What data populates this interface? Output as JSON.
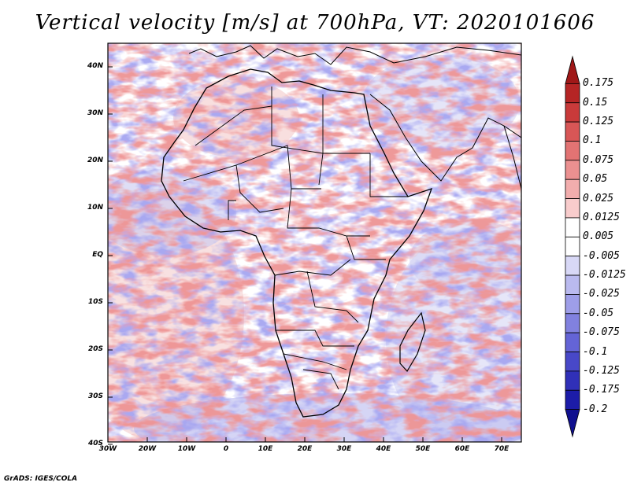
{
  "title": "Vertical velocity [m/s] at 700hPa, VT: 2020101606",
  "credit": "GrADS: IGES/COLA",
  "lat_labels": [
    "40N",
    "30N",
    "20N",
    "10N",
    "EQ",
    "10S",
    "20S",
    "30S",
    "40S"
  ],
  "lon_labels": [
    "30W",
    "20W",
    "10W",
    "0",
    "10E",
    "20E",
    "30E",
    "40E",
    "50E",
    "60E",
    "70E"
  ],
  "colorbar": {
    "labels": [
      "0.175",
      "0.15",
      "0.125",
      "0.1",
      "0.075",
      "0.05",
      "0.025",
      "0.0125",
      "0.005",
      "-0.005",
      "-0.0125",
      "-0.025",
      "-0.05",
      "-0.075",
      "-0.1",
      "-0.125",
      "-0.175",
      "-0.2"
    ],
    "colors": [
      "#a01818",
      "#b52525",
      "#c93a3a",
      "#d85656",
      "#e27373",
      "#eb9090",
      "#f2adad",
      "#f8cccc",
      "#ffffff",
      "#ffffff",
      "#d8d8f6",
      "#babaef",
      "#9e9ee8",
      "#8181df",
      "#6464d6",
      "#4848c8",
      "#3030b8",
      "#1c1ca8",
      "#10108f"
    ]
  }
}
